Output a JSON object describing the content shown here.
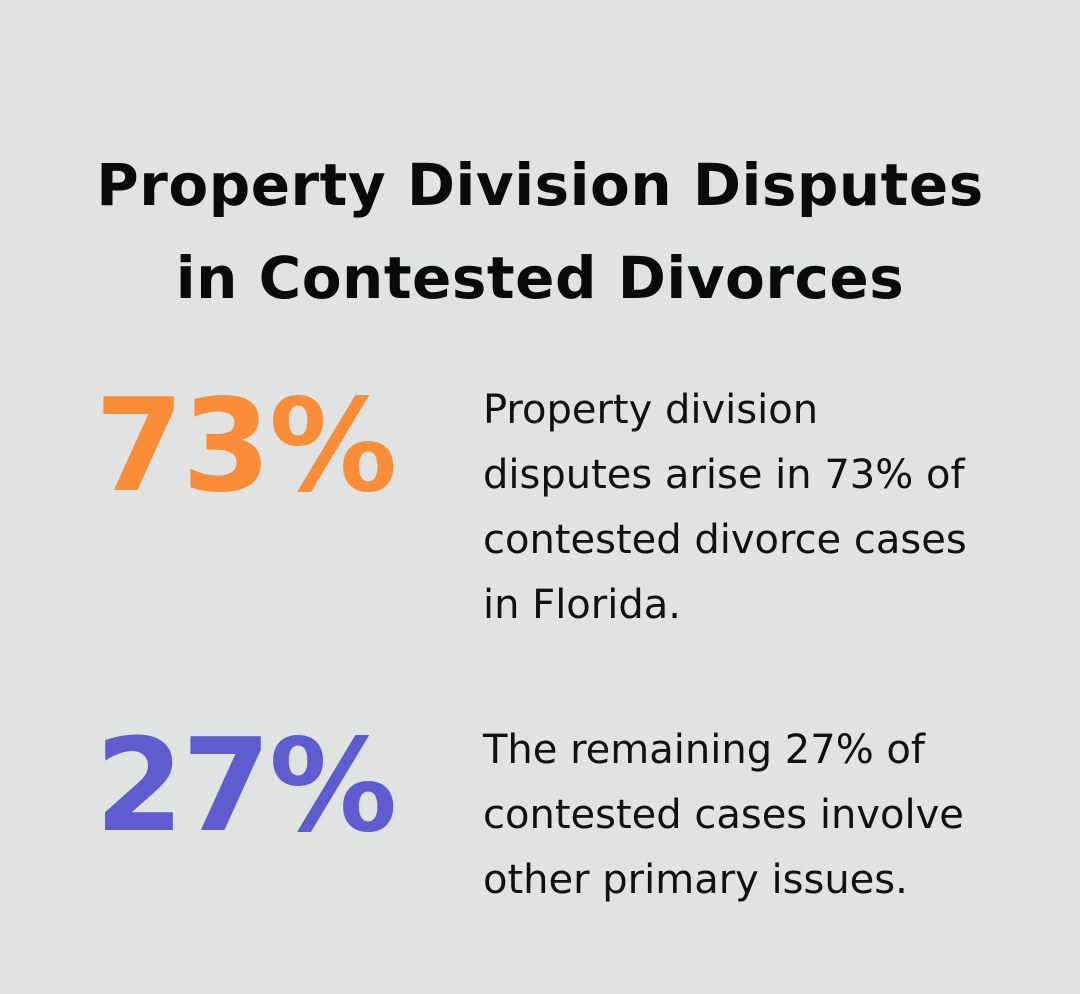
{
  "title": {
    "line1": "Property Division Disputes",
    "line2": "in Contested Divorces"
  },
  "stats": [
    {
      "value": "73%",
      "color": "#fb8c38",
      "description_lines": [
        "Property division",
        "disputes arise in 73% of",
        "contested divorce cases",
        "in Florida."
      ]
    },
    {
      "value": "27%",
      "color": "#5e5ccf",
      "description_lines": [
        "The remaining 27% of",
        "contested cases involve",
        "other primary issues."
      ]
    }
  ]
}
